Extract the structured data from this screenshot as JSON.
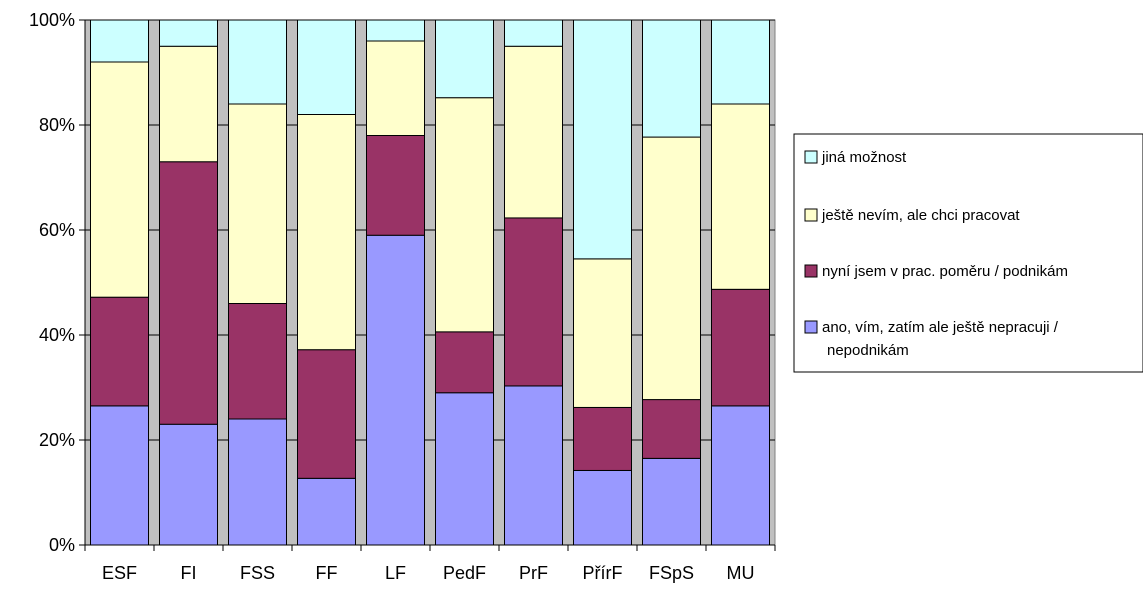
{
  "chart_data": {
    "type": "bar",
    "stacked": true,
    "categories": [
      "ESF",
      "FI",
      "FSS",
      "FF",
      "LF",
      "PedF",
      "PrF",
      "PřírF",
      "FSpS",
      "MU"
    ],
    "series": [
      {
        "name": "ano, vím, zatím ale ještě nepracuji / nepodnikám",
        "color": "#9999ff",
        "values": [
          26.5,
          23,
          24,
          12.7,
          59,
          29,
          30.3,
          14.2,
          16.5,
          26.5
        ]
      },
      {
        "name": "nyní jsem v prac. poměru / podnikám",
        "color": "#993366",
        "values": [
          20.7,
          50,
          22,
          24.5,
          19,
          11.6,
          32,
          12,
          11.2,
          22.2
        ]
      },
      {
        "name": "ještě nevím, ale chci pracovat",
        "color": "#ffffcc",
        "values": [
          44.8,
          22,
          38,
          44.8,
          18,
          44.6,
          32.7,
          28.3,
          50,
          35.3
        ]
      },
      {
        "name": "jiná možnost",
        "color": "#ccffff",
        "values": [
          8,
          5,
          16,
          18,
          4,
          14.8,
          5,
          45.5,
          22.3,
          16
        ]
      }
    ],
    "ylim": [
      0,
      100
    ],
    "yticks": [
      "0%",
      "20%",
      "40%",
      "60%",
      "80%",
      "100%"
    ],
    "legend_order": [
      "jiná možnost",
      "ještě nevím, ale chci pracovat",
      "nyní jsem v prac. poměru / podnikám",
      "ano, vím, zatím ale ještě nepracuji / nepodnikám"
    ],
    "legend_position": "right",
    "grid": true,
    "plot_background": "#c0c0c0"
  }
}
